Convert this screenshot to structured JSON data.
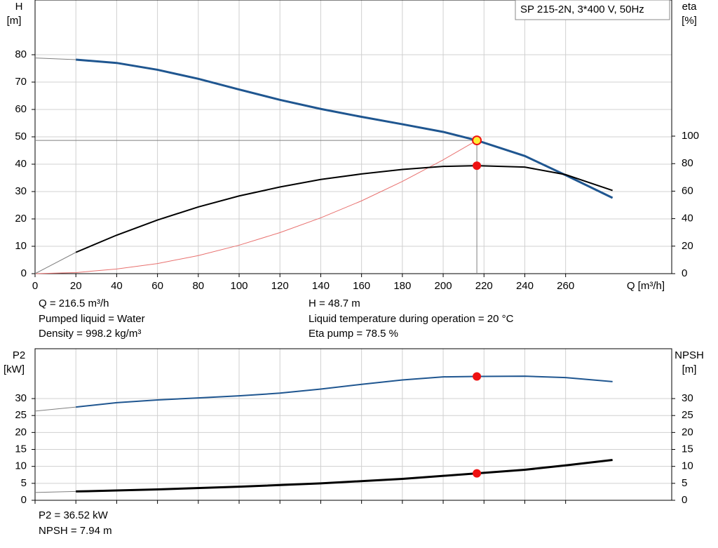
{
  "chart_data": [
    {
      "type": "line",
      "title": "SP 215-2N, 3*400 V, 50Hz",
      "y_label": [
        "H",
        "[m]"
      ],
      "y2_label": [
        "eta",
        "[%]"
      ],
      "x_label": "Q [m³/h]",
      "xlim": [
        0,
        312
      ],
      "xticks": [
        0,
        20,
        40,
        60,
        80,
        100,
        120,
        140,
        160,
        180,
        200,
        220,
        240,
        260
      ],
      "ylim": [
        0,
        100
      ],
      "yticks": [
        0,
        10,
        20,
        30,
        40,
        50,
        60,
        70,
        80
      ],
      "y2lim": [
        0,
        199
      ],
      "y2ticks": [
        0,
        20,
        40,
        60,
        80,
        100
      ],
      "grid": true,
      "series": [
        {
          "color": "#7f7f7f",
          "width": 1,
          "axis": "y",
          "x": [
            0,
            216.5,
            216.5
          ],
          "values": [
            48.7,
            48.7,
            0
          ]
        },
        {
          "color": "#e8706e",
          "width": 1,
          "axis": "y",
          "x": [
            0,
            20,
            40,
            60,
            80,
            100,
            120,
            140,
            160,
            180,
            200,
            216.5
          ],
          "values": [
            0,
            0.4,
            1.7,
            3.7,
            6.6,
            10.4,
            15,
            20.4,
            26.6,
            33.7,
            41.6,
            48.7
          ]
        },
        {
          "color": "#7f7f7f",
          "width": 1,
          "axis": "y",
          "x": [
            0,
            20
          ],
          "values": [
            78.8,
            78.2
          ]
        },
        {
          "color": "#1f5690",
          "width": 3,
          "axis": "y",
          "x": [
            20,
            40,
            60,
            80,
            100,
            120,
            140,
            160,
            180,
            200,
            216.5,
            240,
            260,
            283
          ],
          "values": [
            78.2,
            77,
            74.5,
            71.2,
            67.3,
            63.5,
            60.2,
            57.3,
            54.6,
            51.8,
            48.7,
            43,
            36,
            27.7
          ]
        },
        {
          "color": "#7f7f7f",
          "width": 1,
          "axis": "y2",
          "x": [
            0,
            20
          ],
          "values": [
            0,
            15.5
          ]
        },
        {
          "color": "#000000",
          "width": 2,
          "axis": "y2",
          "x": [
            20,
            40,
            60,
            80,
            100,
            120,
            140,
            160,
            180,
            200,
            216.5,
            240,
            260,
            283
          ],
          "values": [
            15.5,
            28,
            39,
            48.5,
            56.5,
            63,
            68.5,
            72.5,
            75.8,
            78,
            78.5,
            77.5,
            72,
            60.5
          ]
        }
      ],
      "points": [
        {
          "x": 216.5,
          "y": 78.5,
          "axis": "y2",
          "color": "#ee1111"
        },
        {
          "x": 216.5,
          "y": 48.7,
          "axis": "y",
          "color": "#ffee33"
        }
      ],
      "annotations": [
        "Q = 216.5 m³/h",
        "Pumped liquid = Water",
        "Density = 998.2 kg/m³",
        "H = 48.7 m",
        "Liquid temperature during operation = 20 °C",
        "Eta pump = 78.5 %"
      ]
    },
    {
      "type": "line",
      "y_label": [
        "P2",
        "[kW]"
      ],
      "y2_label": [
        "NPSH",
        "[m]"
      ],
      "xlim": [
        0,
        312
      ],
      "xticks": [
        0,
        20,
        40,
        60,
        80,
        100,
        120,
        140,
        160,
        180,
        200,
        220,
        240,
        260
      ],
      "ylim": [
        0,
        44.7
      ],
      "yticks": [
        0,
        5,
        10,
        15,
        20,
        25,
        30
      ],
      "y2lim": [
        0,
        44.7
      ],
      "y2ticks": [
        0,
        5,
        10,
        15,
        20,
        25,
        30
      ],
      "grid": true,
      "series": [
        {
          "color": "#7f7f7f",
          "width": 1,
          "axis": "y",
          "x": [
            0,
            20
          ],
          "values": [
            26.3,
            27.5
          ]
        },
        {
          "color": "#1f5690",
          "width": 2,
          "axis": "y",
          "x": [
            20,
            40,
            60,
            80,
            100,
            120,
            140,
            160,
            180,
            200,
            216.5,
            240,
            260,
            283
          ],
          "values": [
            27.5,
            28.8,
            29.6,
            30.2,
            30.8,
            31.6,
            32.8,
            34.2,
            35.5,
            36.4,
            36.52,
            36.6,
            36.2,
            35
          ]
        },
        {
          "color": "#7f7f7f",
          "width": 1,
          "axis": "y2",
          "x": [
            0,
            20
          ],
          "values": [
            2.3,
            2.6
          ]
        },
        {
          "color": "#000000",
          "width": 3,
          "axis": "y2",
          "x": [
            20,
            60,
            100,
            140,
            180,
            216.5,
            240,
            260,
            283
          ],
          "values": [
            2.6,
            3.2,
            4,
            5,
            6.3,
            7.94,
            9,
            10.3,
            11.9
          ]
        }
      ],
      "points": [
        {
          "x": 216.5,
          "y": 36.52,
          "axis": "y",
          "color": "#ee1111"
        },
        {
          "x": 216.5,
          "y": 7.94,
          "axis": "y2",
          "color": "#ee1111"
        }
      ],
      "annotations": [
        "P2 = 36.52 kW",
        "NPSH = 7.94 m"
      ]
    }
  ]
}
